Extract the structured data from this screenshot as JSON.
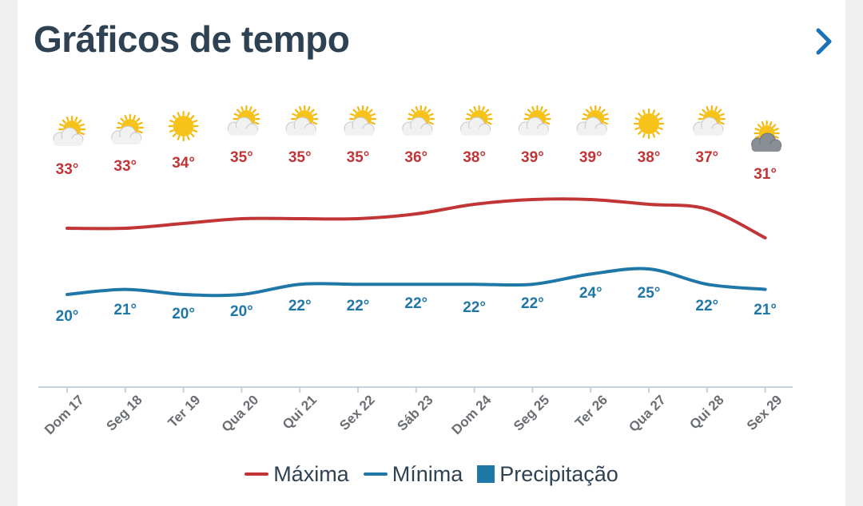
{
  "header": {
    "title": "Gráficos de tempo",
    "next_icon": "chevron-right-icon"
  },
  "chart_data": {
    "type": "line",
    "categories": [
      "Dom 17",
      "Seg 18",
      "Ter 19",
      "Qua 20",
      "Qui 21",
      "Sex 22",
      "Sáb 23",
      "Dom 24",
      "Seg 25",
      "Ter 26",
      "Qua 27",
      "Qui 28",
      "Sex 29"
    ],
    "series": [
      {
        "name": "Máxima",
        "color": "#c13536",
        "values": [
          33,
          33,
          34,
          35,
          35,
          35,
          36,
          38,
          39,
          39,
          38,
          37,
          31
        ],
        "labels": [
          "33°",
          "33°",
          "34°",
          "35°",
          "35°",
          "35°",
          "36°",
          "38°",
          "39°",
          "39°",
          "38°",
          "37°",
          "31°"
        ]
      },
      {
        "name": "Mínima",
        "color": "#1f77a8",
        "values": [
          20,
          21,
          20,
          20,
          22,
          22,
          22,
          22,
          22,
          24,
          25,
          22,
          21
        ],
        "labels": [
          "20°",
          "21°",
          "20°",
          "20°",
          "22°",
          "22°",
          "22°",
          "22°",
          "22°",
          "24°",
          "25°",
          "22°",
          "21°"
        ]
      }
    ],
    "icons": [
      "partly-cloudy-icon",
      "partly-cloudy-icon",
      "sunny-icon",
      "partly-cloudy-icon",
      "partly-cloudy-icon",
      "partly-cloudy-icon",
      "partly-cloudy-icon",
      "partly-cloudy-icon",
      "partly-cloudy-icon",
      "partly-cloudy-icon",
      "sunny-icon",
      "partly-cloudy-icon",
      "cloudy-icon"
    ],
    "legend": [
      "Máxima",
      "Mínima",
      "Precipitação"
    ],
    "legend_position": "bottom",
    "precipitation_color": "#1f77a8",
    "grid": false
  }
}
